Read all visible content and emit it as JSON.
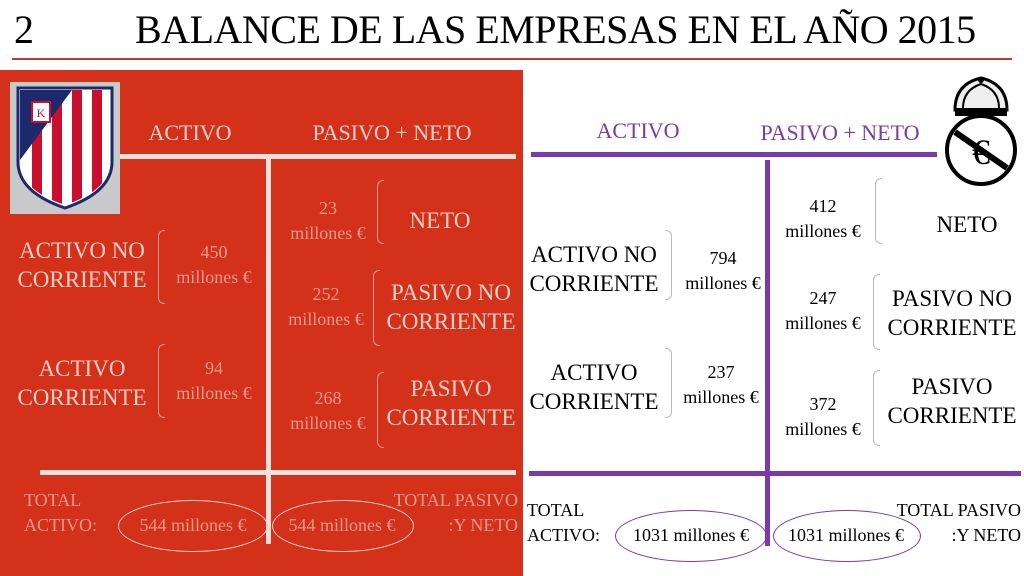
{
  "slide": {
    "number": "2",
    "title": "BALANCE DE LAS EMPRESAS EN EL AÑO 2015"
  },
  "atletico": {
    "activo_header": "ACTIVO",
    "pasivo_header": "PASIVO + NETO",
    "activo_no_corriente": {
      "label_1": "ACTIVO NO",
      "label_2": "CORRIENTE",
      "value_1": "450",
      "value_2": "millones €"
    },
    "activo_corriente": {
      "label_1": "ACTIVO",
      "label_2": "CORRIENTE",
      "value_1": "94",
      "value_2": "millones €"
    },
    "neto": {
      "label": "NETO",
      "value_1": "23",
      "value_2": "millones €"
    },
    "pasivo_no_corriente": {
      "label_1": "PASIVO NO",
      "label_2": "CORRIENTE",
      "value_1": "252",
      "value_2": "millones €"
    },
    "pasivo_corriente": {
      "label_1": "PASIVO",
      "label_2": "CORRIENTE",
      "value_1": "268",
      "value_2": "millones €"
    },
    "total_activo": {
      "label_1": "TOTAL",
      "label_2": "ACTIVO:",
      "value": "544 millones €"
    },
    "total_pasivo": {
      "label_1": "TOTAL PASIVO",
      "label_2": ":Y NETO",
      "value": "544 millones €"
    }
  },
  "real_madrid": {
    "activo_header": "ACTIVO",
    "pasivo_header": "PASIVO + NETO",
    "activo_no_corriente": {
      "label_1": "ACTIVO NO",
      "label_2": "CORRIENTE",
      "value_1": "794",
      "value_2": "millones €"
    },
    "activo_corriente": {
      "label_1": "ACTIVO",
      "label_2": "CORRIENTE",
      "value_1": "237",
      "value_2": "millones €"
    },
    "neto": {
      "label": "NETO",
      "value_1": "412",
      "value_2": "millones €"
    },
    "pasivo_no_corriente": {
      "label_1": "PASIVO NO",
      "label_2": "CORRIENTE",
      "value_1": "247",
      "value_2": "millones €"
    },
    "pasivo_corriente": {
      "label_1": "PASIVO",
      "label_2": "CORRIENTE",
      "value_1": "372",
      "value_2": "millones €"
    },
    "total_activo": {
      "label_1": "TOTAL",
      "label_2": "ACTIVO:",
      "value": "1031 millones €"
    },
    "total_pasivo": {
      "label_1": "TOTAL PASIVO",
      "label_2": ":Y NETO",
      "value": "1031 millones €"
    }
  },
  "colors": {
    "atletico_red": "#d4311a",
    "madrid_purple": "#7a3aa8"
  }
}
